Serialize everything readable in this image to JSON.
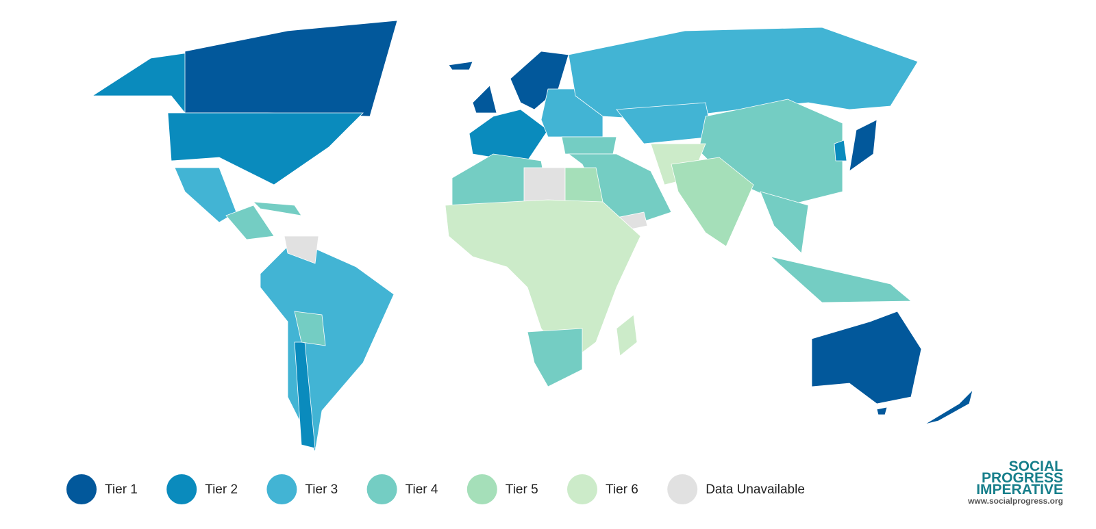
{
  "legend": {
    "items": [
      {
        "label": "Tier 1",
        "color": "#02589b"
      },
      {
        "label": "Tier 2",
        "color": "#0a8bbd"
      },
      {
        "label": "Tier 3",
        "color": "#42b4d4"
      },
      {
        "label": "Tier 4",
        "color": "#74cdc3"
      },
      {
        "label": "Tier 5",
        "color": "#a5dfb9"
      },
      {
        "label": "Tier 6",
        "color": "#ccebc9"
      },
      {
        "label": "Data Unavailable",
        "color": "#e1e1e1"
      }
    ]
  },
  "logo": {
    "lines": [
      "SOCIAL",
      "PROGRESS",
      "IMPERATIVE"
    ],
    "url": "www.socialprogress.org"
  }
}
